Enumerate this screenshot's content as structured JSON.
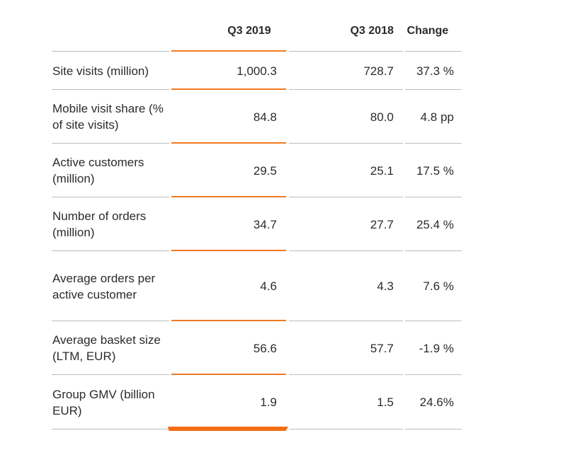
{
  "table": {
    "headers": {
      "metric": "",
      "q3_2019": "Q3 2019",
      "q3_2018": "Q3 2018",
      "change": "Change"
    },
    "rows": [
      {
        "metric": "Site visits (million)",
        "q3_2019": "1,000.3",
        "q3_2018": "728.7",
        "change": "37.3 %"
      },
      {
        "metric": "Mobile visit share (% of site visits)",
        "q3_2019": "84.8",
        "q3_2018": "80.0",
        "change": "4.8 pp"
      },
      {
        "metric": "Active customers (million)",
        "q3_2019": "29.5",
        "q3_2018": "25.1",
        "change": "17.5 %"
      },
      {
        "metric": "Number of orders (million)",
        "q3_2019": "34.7",
        "q3_2018": "27.7",
        "change": "25.4 %"
      },
      {
        "metric": "Average orders per active customer",
        "q3_2019": "4.6",
        "q3_2018": "4.3",
        "change": "7.6 %"
      },
      {
        "metric": "Average basket size (LTM, EUR)",
        "q3_2019": "56.6",
        "q3_2018": "57.7",
        "change": "-1.9 %"
      },
      {
        "metric": "Group GMV (billion EUR)",
        "q3_2019": "1.9",
        "q3_2018": "1.5",
        "change": "24.6%"
      }
    ]
  },
  "colors": {
    "accent": "#f07a22",
    "rule": "#bdbdbd",
    "text": "#2b2b2b"
  }
}
